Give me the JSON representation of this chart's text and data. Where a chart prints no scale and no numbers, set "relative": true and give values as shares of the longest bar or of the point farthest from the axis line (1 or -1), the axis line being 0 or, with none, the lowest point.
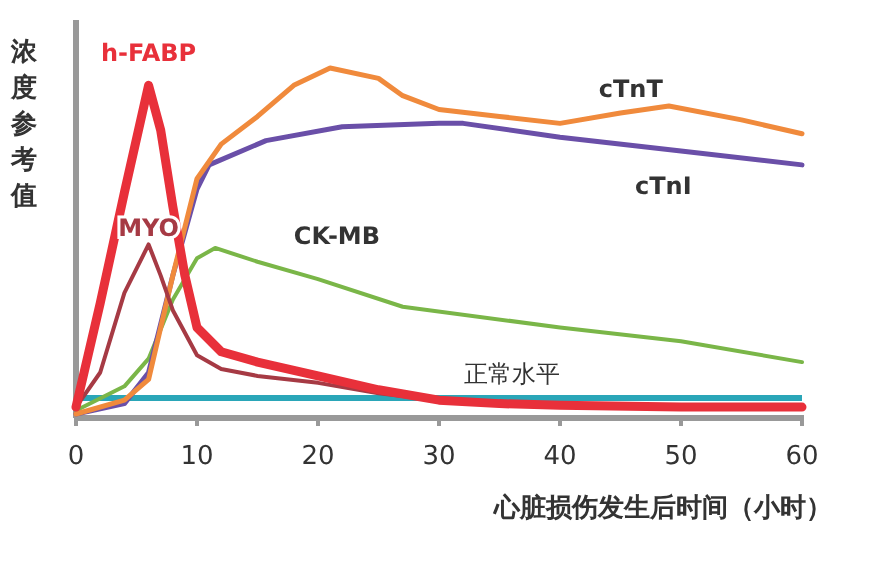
{
  "chart_data": {
    "type": "line",
    "relative": true,
    "xlabel": "心脏损伤发生后时间（小时）",
    "ylabel": "浓度参考值",
    "xlim": [
      0,
      60
    ],
    "xticks": [
      0,
      10,
      20,
      30,
      40,
      50,
      60
    ],
    "grid": false,
    "marker": "none",
    "line_style": "solid",
    "series": [
      {
        "name": "h-FABP",
        "color": "#e8303a",
        "x": [
          0,
          2,
          4,
          6,
          7,
          8,
          9,
          10,
          12,
          15,
          20,
          25,
          30,
          35,
          40,
          50,
          60
        ],
        "values": [
          0.02,
          0.32,
          0.64,
          0.95,
          0.82,
          0.6,
          0.4,
          0.25,
          0.18,
          0.15,
          0.11,
          0.07,
          0.04,
          0.03,
          0.025,
          0.02,
          0.02
        ]
      },
      {
        "name": "MYO",
        "color": "#a63a44",
        "x": [
          0,
          2,
          4,
          6,
          7,
          8,
          10,
          12,
          15,
          20,
          25,
          30,
          40,
          50,
          60
        ],
        "values": [
          0.02,
          0.12,
          0.35,
          0.49,
          0.4,
          0.3,
          0.17,
          0.13,
          0.11,
          0.09,
          0.06,
          0.04,
          0.025,
          0.02,
          0.02
        ]
      },
      {
        "name": "CK-MB",
        "color": "#7ab648",
        "x": [
          0,
          4,
          6,
          8,
          10,
          11.5,
          15,
          20,
          27,
          40,
          50,
          60
        ],
        "values": [
          0.01,
          0.08,
          0.16,
          0.33,
          0.45,
          0.48,
          0.44,
          0.39,
          0.31,
          0.25,
          0.21,
          0.15
        ]
      },
      {
        "name": "cTnT",
        "color": "#f08a3c",
        "x": [
          0,
          4,
          6,
          8,
          10,
          12,
          15,
          18,
          21,
          25,
          27,
          30,
          35,
          40,
          45,
          49,
          55,
          60
        ],
        "values": [
          0.0,
          0.04,
          0.1,
          0.4,
          0.68,
          0.78,
          0.86,
          0.95,
          1.0,
          0.97,
          0.92,
          0.88,
          0.86,
          0.84,
          0.87,
          0.89,
          0.85,
          0.81
        ]
      },
      {
        "name": "cTnI",
        "color": "#6a4fa8",
        "x": [
          0,
          4,
          6,
          8,
          10,
          11,
          15.7,
          22,
          30,
          32,
          40,
          50,
          60
        ],
        "values": [
          0.0,
          0.03,
          0.12,
          0.4,
          0.65,
          0.72,
          0.79,
          0.83,
          0.84,
          0.84,
          0.8,
          0.76,
          0.72
        ]
      }
    ],
    "ref_lines": [
      {
        "axis": "y",
        "value": 0.046,
        "label": "正常水平",
        "color": "#2aa6b8",
        "line_style": "solid"
      }
    ]
  }
}
